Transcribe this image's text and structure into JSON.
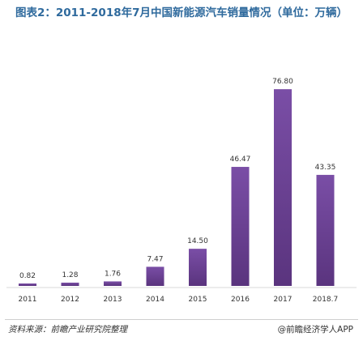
{
  "chart_data": {
    "type": "bar",
    "title": "图表2：2011-2018年7月中国新能源汽车销量情况（单位：万辆）",
    "categories": [
      "2011",
      "2012",
      "2013",
      "2014",
      "2015",
      "2016",
      "2017",
      "2018.7"
    ],
    "values": [
      0.82,
      1.28,
      1.76,
      7.47,
      14.5,
      46.47,
      76.8,
      43.35
    ],
    "value_labels": [
      "0.82",
      "1.28",
      "1.76",
      "7.47",
      "14.50",
      "46.47",
      "76.80",
      "43.35"
    ],
    "ylim": [
      0,
      80
    ],
    "grid": false,
    "bar_color": "#6f4597"
  },
  "footer": {
    "source": "资料来源：前瞻产业研究院整理",
    "credit": "@前瞻经济学人APP"
  }
}
